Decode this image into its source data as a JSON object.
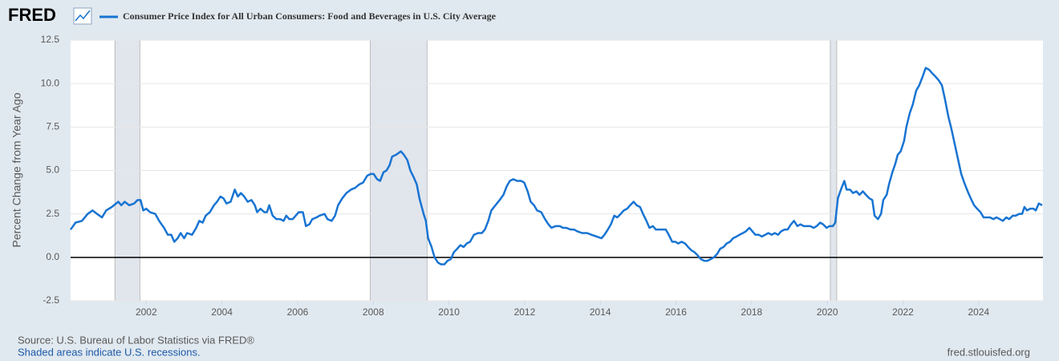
{
  "logo": "FRED",
  "source": "Source: U.S. Bureau of Labor Statistics via FRED®",
  "note": "Shaded areas indicate U.S. recessions.",
  "site": "fred.stlouisfed.org",
  "chart_data": {
    "type": "line",
    "ylabel": "Percent Change from Year Ago",
    "xlim": [
      2000,
      2025.7
    ],
    "xticks": [
      2002,
      2004,
      2006,
      2008,
      2010,
      2012,
      2014,
      2016,
      2018,
      2020,
      2022,
      2024
    ],
    "ylim": [
      -2.5,
      12.5
    ],
    "yticks": [
      -2.5,
      {
        "value": 0,
        "label": "0.0"
      },
      2.5,
      {
        "value": 5,
        "label": "5.0"
      },
      7.5,
      {
        "value": 10,
        "label": "10.0"
      },
      12.5
    ],
    "grid": true,
    "recessions": [
      [
        2001.17,
        2001.83
      ],
      [
        2007.92,
        2009.42
      ],
      [
        2020.08,
        2020.25
      ]
    ],
    "x": [
      2000.0,
      2000.13,
      2000.3,
      2000.45,
      2000.58,
      2000.7,
      2000.83,
      2000.94,
      2001.09,
      2001.26,
      2001.34,
      2001.43,
      2001.55,
      2001.68,
      2001.77,
      2001.85,
      2001.92,
      2002.0,
      2002.1,
      2002.24,
      2002.34,
      2002.47,
      2002.57,
      2002.66,
      2002.74,
      2002.83,
      2002.91,
      2003.0,
      2003.08,
      2003.21,
      2003.32,
      2003.4,
      2003.49,
      2003.57,
      2003.68,
      2003.79,
      2003.87,
      2003.96,
      2004.04,
      2004.12,
      2004.23,
      2004.34,
      2004.42,
      2004.5,
      2004.59,
      2004.68,
      2004.78,
      2004.87,
      2004.93,
      2005.02,
      2005.12,
      2005.19,
      2005.25,
      2005.34,
      2005.44,
      2005.54,
      2005.63,
      2005.7,
      2005.78,
      2005.87,
      2005.95,
      2006.03,
      2006.14,
      2006.22,
      2006.31,
      2006.39,
      2006.5,
      2006.58,
      2006.71,
      2006.79,
      2006.9,
      2006.99,
      2007.07,
      2007.18,
      2007.29,
      2007.41,
      2007.52,
      2007.63,
      2007.73,
      2007.84,
      2007.93,
      2008.01,
      2008.1,
      2008.18,
      2008.27,
      2008.35,
      2008.43,
      2008.5,
      2008.6,
      2008.73,
      2008.81,
      2008.9,
      2008.98,
      2009.07,
      2009.15,
      2009.22,
      2009.33,
      2009.39,
      2009.45,
      2009.54,
      2009.62,
      2009.71,
      2009.79,
      2009.88,
      2009.96,
      2010.05,
      2010.13,
      2010.22,
      2010.3,
      2010.39,
      2010.47,
      2010.56,
      2010.66,
      2010.77,
      2010.87,
      2010.95,
      2011.04,
      2011.12,
      2011.23,
      2011.34,
      2011.44,
      2011.53,
      2011.61,
      2011.7,
      2011.8,
      2011.91,
      2011.99,
      2012.08,
      2012.16,
      2012.25,
      2012.33,
      2012.44,
      2012.54,
      2012.63,
      2012.71,
      2012.82,
      2012.93,
      2013.01,
      2013.1,
      2013.22,
      2013.31,
      2013.39,
      2013.52,
      2013.65,
      2013.77,
      2013.9,
      2014.03,
      2014.11,
      2014.2,
      2014.28,
      2014.37,
      2014.45,
      2014.54,
      2014.62,
      2014.71,
      2014.79,
      2014.88,
      2014.96,
      2015.05,
      2015.13,
      2015.22,
      2015.3,
      2015.39,
      2015.47,
      2015.56,
      2015.64,
      2015.73,
      2015.81,
      2015.9,
      2015.98,
      2016.06,
      2016.15,
      2016.24,
      2016.32,
      2016.41,
      2016.49,
      2016.58,
      2016.66,
      2016.75,
      2016.83,
      2016.92,
      2017.0,
      2017.09,
      2017.17,
      2017.26,
      2017.34,
      2017.43,
      2017.51,
      2017.6,
      2017.68,
      2017.77,
      2017.85,
      2017.94,
      2018.02,
      2018.1,
      2018.19,
      2018.27,
      2018.36,
      2018.44,
      2018.53,
      2018.61,
      2018.7,
      2018.78,
      2018.87,
      2018.95,
      2019.04,
      2019.12,
      2019.21,
      2019.29,
      2019.38,
      2019.46,
      2019.55,
      2019.64,
      2019.72,
      2019.81,
      2019.89,
      2019.98,
      2020.06,
      2020.15,
      2020.21,
      2020.28,
      2020.36,
      2020.45,
      2020.51,
      2020.6,
      2020.68,
      2020.77,
      2020.85,
      2020.94,
      2021.02,
      2021.11,
      2021.19,
      2021.25,
      2021.34,
      2021.42,
      2021.48,
      2021.57,
      2021.63,
      2021.72,
      2021.8,
      2021.86,
      2021.94,
      2022.03,
      2022.09,
      2022.18,
      2022.26,
      2022.35,
      2022.43,
      2022.52,
      2022.6,
      2022.69,
      2022.77,
      2022.86,
      2022.94,
      2023.03,
      2023.11,
      2023.2,
      2023.28,
      2023.37,
      2023.45,
      2023.54,
      2023.62,
      2023.71,
      2023.79,
      2023.88,
      2023.96,
      2024.05,
      2024.13,
      2024.22,
      2024.3,
      2024.39,
      2024.47,
      2024.56,
      2024.64,
      2024.73,
      2024.81,
      2024.9,
      2024.98,
      2025.07,
      2025.15,
      2025.21,
      2025.28,
      2025.36,
      2025.45,
      2025.51,
      2025.59,
      2025.68
    ],
    "series": [
      {
        "name": "Consumer Price Index for All Urban Consumers: Food and Beverages in U.S. City Average",
        "color": "#1874d2",
        "values": [
          1.6,
          2.0,
          2.1,
          2.5,
          2.7,
          2.5,
          2.3,
          2.7,
          2.9,
          3.2,
          3.0,
          3.2,
          3.0,
          3.1,
          3.3,
          3.3,
          2.7,
          2.8,
          2.6,
          2.5,
          2.1,
          1.7,
          1.3,
          1.3,
          0.9,
          1.1,
          1.4,
          1.1,
          1.4,
          1.3,
          1.7,
          2.1,
          2.0,
          2.4,
          2.6,
          3.0,
          3.2,
          3.5,
          3.4,
          3.1,
          3.2,
          3.9,
          3.5,
          3.7,
          3.5,
          3.2,
          3.3,
          3.0,
          2.6,
          2.8,
          2.6,
          2.6,
          3.0,
          2.4,
          2.2,
          2.2,
          2.1,
          2.4,
          2.2,
          2.2,
          2.4,
          2.6,
          2.6,
          1.8,
          1.9,
          2.2,
          2.3,
          2.4,
          2.5,
          2.2,
          2.1,
          2.4,
          3.0,
          3.4,
          3.7,
          3.9,
          4.0,
          4.2,
          4.3,
          4.7,
          4.8,
          4.8,
          4.5,
          4.4,
          4.9,
          5.0,
          5.3,
          5.8,
          5.9,
          6.1,
          5.9,
          5.6,
          5.0,
          4.6,
          4.2,
          3.4,
          2.5,
          2.1,
          1.1,
          0.6,
          0.0,
          -0.3,
          -0.4,
          -0.4,
          -0.2,
          -0.1,
          0.3,
          0.5,
          0.7,
          0.6,
          0.8,
          0.9,
          1.3,
          1.4,
          1.4,
          1.6,
          2.1,
          2.7,
          3.0,
          3.3,
          3.6,
          4.1,
          4.4,
          4.5,
          4.4,
          4.4,
          4.3,
          3.8,
          3.2,
          3.0,
          2.7,
          2.6,
          2.2,
          1.9,
          1.7,
          1.8,
          1.8,
          1.7,
          1.7,
          1.6,
          1.6,
          1.5,
          1.4,
          1.4,
          1.3,
          1.2,
          1.1,
          1.3,
          1.6,
          1.9,
          2.4,
          2.3,
          2.5,
          2.7,
          2.8,
          3.0,
          3.2,
          3.0,
          2.9,
          2.5,
          2.1,
          1.7,
          1.8,
          1.6,
          1.6,
          1.6,
          1.6,
          1.3,
          0.9,
          0.9,
          0.8,
          0.9,
          0.8,
          0.6,
          0.4,
          0.3,
          0.1,
          -0.1,
          -0.2,
          -0.2,
          -0.1,
          0.0,
          0.2,
          0.5,
          0.6,
          0.8,
          0.9,
          1.1,
          1.2,
          1.3,
          1.4,
          1.5,
          1.7,
          1.5,
          1.3,
          1.3,
          1.2,
          1.3,
          1.4,
          1.3,
          1.4,
          1.3,
          1.5,
          1.6,
          1.6,
          1.9,
          2.1,
          1.8,
          1.9,
          1.8,
          1.8,
          1.8,
          1.7,
          1.8,
          2.0,
          1.9,
          1.7,
          1.8,
          1.8,
          2.0,
          3.4,
          3.9,
          4.4,
          3.9,
          3.9,
          3.7,
          3.8,
          3.6,
          3.8,
          3.6,
          3.4,
          3.3,
          2.4,
          2.2,
          2.5,
          3.3,
          3.6,
          4.2,
          4.9,
          5.4,
          5.9,
          6.1,
          6.7,
          7.5,
          8.3,
          8.8,
          9.6,
          9.9,
          10.4,
          10.9,
          10.8,
          10.6,
          10.4,
          10.2,
          9.9,
          9.1,
          8.1,
          7.4,
          6.5,
          5.7,
          4.8,
          4.3,
          3.8,
          3.4,
          3.0,
          2.8,
          2.6,
          2.3,
          2.3,
          2.3,
          2.2,
          2.3,
          2.2,
          2.1,
          2.3,
          2.2,
          2.4,
          2.4,
          2.5,
          2.5,
          2.9,
          2.7,
          2.8,
          2.8,
          2.7,
          3.1,
          3.0
        ]
      }
    ]
  }
}
